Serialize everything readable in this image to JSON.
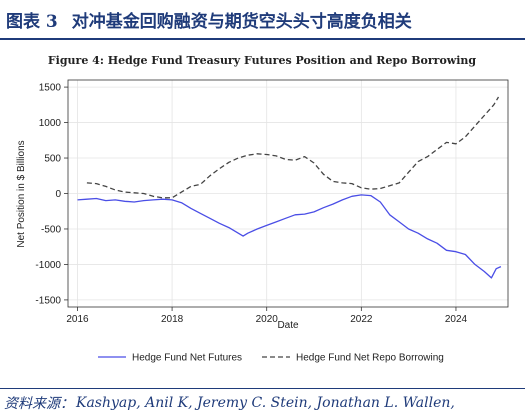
{
  "header": {
    "label": "图表 3",
    "title": "对冲基金回购融资与期货空头头寸高度负相关"
  },
  "footer": {
    "source_label": "资料来源：",
    "source_text": "Kashyap, Anil K, Jeremy C. Stein, Jonathan L. Wallen,"
  },
  "chart_data": {
    "type": "line",
    "title": "Figure 4: Hedge Fund Treasury Futures Position and Repo Borrowing",
    "xlabel": "Date",
    "ylabel": "Net Position in $ Billions",
    "xlim": [
      2015.8,
      2025.1
    ],
    "ylim": [
      -1600,
      1600
    ],
    "xticks": [
      2016,
      2018,
      2020,
      2022,
      2024
    ],
    "yticks": [
      -1500,
      -1000,
      -500,
      0,
      500,
      1000,
      1500
    ],
    "grid": true,
    "legend_position": "bottom",
    "series": [
      {
        "name": "Hedge Fund Net Futures",
        "color": "#4a4ee6",
        "style": "solid",
        "points": [
          [
            2016.0,
            -90
          ],
          [
            2016.2,
            -80
          ],
          [
            2016.4,
            -70
          ],
          [
            2016.6,
            -100
          ],
          [
            2016.8,
            -90
          ],
          [
            2017.0,
            -110
          ],
          [
            2017.2,
            -120
          ],
          [
            2017.4,
            -100
          ],
          [
            2017.6,
            -90
          ],
          [
            2017.8,
            -80
          ],
          [
            2018.0,
            -90
          ],
          [
            2018.2,
            -130
          ],
          [
            2018.4,
            -210
          ],
          [
            2018.6,
            -280
          ],
          [
            2018.8,
            -350
          ],
          [
            2019.0,
            -420
          ],
          [
            2019.2,
            -480
          ],
          [
            2019.4,
            -560
          ],
          [
            2019.5,
            -600
          ],
          [
            2019.6,
            -560
          ],
          [
            2019.8,
            -500
          ],
          [
            2020.0,
            -450
          ],
          [
            2020.2,
            -400
          ],
          [
            2020.4,
            -350
          ],
          [
            2020.6,
            -300
          ],
          [
            2020.8,
            -290
          ],
          [
            2021.0,
            -260
          ],
          [
            2021.2,
            -200
          ],
          [
            2021.4,
            -150
          ],
          [
            2021.6,
            -90
          ],
          [
            2021.8,
            -40
          ],
          [
            2022.0,
            -20
          ],
          [
            2022.2,
            -30
          ],
          [
            2022.4,
            -120
          ],
          [
            2022.6,
            -300
          ],
          [
            2022.8,
            -400
          ],
          [
            2023.0,
            -500
          ],
          [
            2023.2,
            -560
          ],
          [
            2023.4,
            -640
          ],
          [
            2023.6,
            -700
          ],
          [
            2023.8,
            -800
          ],
          [
            2024.0,
            -820
          ],
          [
            2024.2,
            -860
          ],
          [
            2024.4,
            -1000
          ],
          [
            2024.6,
            -1100
          ],
          [
            2024.75,
            -1190
          ],
          [
            2024.85,
            -1060
          ],
          [
            2024.95,
            -1030
          ]
        ]
      },
      {
        "name": "Hedge Fund Net Repo Borrowing",
        "color": "#444444",
        "style": "dashed",
        "points": [
          [
            2016.2,
            150
          ],
          [
            2016.4,
            140
          ],
          [
            2016.6,
            100
          ],
          [
            2016.8,
            50
          ],
          [
            2017.0,
            20
          ],
          [
            2017.2,
            10
          ],
          [
            2017.4,
            0
          ],
          [
            2017.6,
            -40
          ],
          [
            2017.8,
            -60
          ],
          [
            2018.0,
            -60
          ],
          [
            2018.2,
            20
          ],
          [
            2018.4,
            100
          ],
          [
            2018.6,
            130
          ],
          [
            2018.8,
            250
          ],
          [
            2019.0,
            350
          ],
          [
            2019.2,
            440
          ],
          [
            2019.4,
            500
          ],
          [
            2019.6,
            540
          ],
          [
            2019.8,
            560
          ],
          [
            2020.0,
            550
          ],
          [
            2020.2,
            530
          ],
          [
            2020.4,
            480
          ],
          [
            2020.6,
            470
          ],
          [
            2020.8,
            520
          ],
          [
            2021.0,
            430
          ],
          [
            2021.2,
            270
          ],
          [
            2021.4,
            170
          ],
          [
            2021.6,
            150
          ],
          [
            2021.8,
            140
          ],
          [
            2022.0,
            80
          ],
          [
            2022.2,
            60
          ],
          [
            2022.4,
            70
          ],
          [
            2022.6,
            110
          ],
          [
            2022.8,
            150
          ],
          [
            2023.0,
            300
          ],
          [
            2023.2,
            450
          ],
          [
            2023.4,
            520
          ],
          [
            2023.6,
            620
          ],
          [
            2023.8,
            720
          ],
          [
            2024.0,
            700
          ],
          [
            2024.2,
            800
          ],
          [
            2024.4,
            950
          ],
          [
            2024.6,
            1100
          ],
          [
            2024.8,
            1250
          ],
          [
            2024.9,
            1360
          ]
        ]
      }
    ]
  }
}
